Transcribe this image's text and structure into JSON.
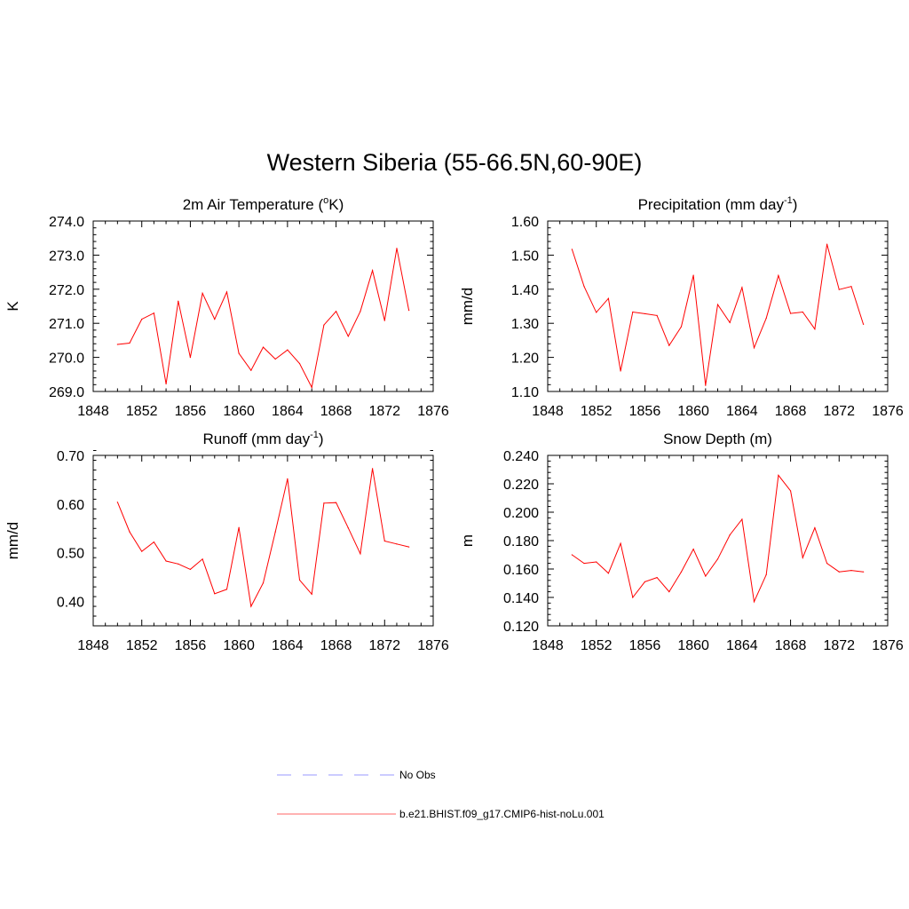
{
  "title": "Western Siberia (55-66.5N,60-90E)",
  "legend": {
    "obs": {
      "label": "No Obs",
      "color": "#9999ff",
      "style": "dashed"
    },
    "model": {
      "label": "b.e21.BHIST.f09_g17.CMIP6-hist-noLu.001",
      "color": "#ff6666",
      "style": "solid"
    }
  },
  "line_color": "#ff0000",
  "chart_data": [
    {
      "type": "line",
      "title_main": "2m Air Temperature (",
      "title_sup": "o",
      "title_tail": "K)",
      "ylabel": "K",
      "xlim": [
        1848,
        1876
      ],
      "ylim": [
        269.0,
        274.0
      ],
      "xticks": [
        1848,
        1852,
        1856,
        1860,
        1864,
        1868,
        1872,
        1876
      ],
      "yticks": [
        269.0,
        270.0,
        271.0,
        272.0,
        273.0,
        274.0
      ],
      "ydecimals": 1,
      "x": [
        1850,
        1851,
        1852,
        1853,
        1854,
        1855,
        1856,
        1857,
        1858,
        1859,
        1860,
        1861,
        1862,
        1863,
        1864,
        1865,
        1866,
        1867,
        1868,
        1869,
        1870,
        1871,
        1872,
        1873,
        1874
      ],
      "y": [
        270.38,
        270.42,
        271.12,
        271.3,
        269.22,
        271.65,
        270.0,
        271.88,
        271.12,
        271.92,
        270.12,
        269.62,
        270.3,
        269.95,
        270.22,
        269.82,
        269.12,
        270.95,
        271.35,
        270.62,
        271.35,
        272.55,
        271.08,
        273.2,
        271.38
      ]
    },
    {
      "type": "line",
      "title_main": "Precipitation (mm day",
      "title_sup": "-1",
      "title_tail": ")",
      "ylabel": "mm/d",
      "xlim": [
        1848,
        1876
      ],
      "ylim": [
        1.1,
        1.6
      ],
      "xticks": [
        1848,
        1852,
        1856,
        1860,
        1864,
        1868,
        1872,
        1876
      ],
      "yticks": [
        1.1,
        1.2,
        1.3,
        1.4,
        1.5,
        1.6
      ],
      "ydecimals": 2,
      "x": [
        1850,
        1851,
        1852,
        1853,
        1854,
        1855,
        1856,
        1857,
        1858,
        1859,
        1860,
        1861,
        1862,
        1863,
        1864,
        1865,
        1866,
        1867,
        1868,
        1869,
        1870,
        1871,
        1872,
        1873,
        1874
      ],
      "y": [
        1.517,
        1.408,
        1.332,
        1.373,
        1.16,
        1.333,
        1.328,
        1.323,
        1.235,
        1.29,
        1.441,
        1.118,
        1.355,
        1.302,
        1.405,
        1.228,
        1.315,
        1.44,
        1.329,
        1.333,
        1.283,
        1.532,
        1.399,
        1.408,
        1.297
      ]
    },
    {
      "type": "line",
      "title_main": "Runoff (mm day",
      "title_sup": "-1",
      "title_tail": ")",
      "ylabel": "mm/d",
      "xlim": [
        1848,
        1876
      ],
      "ylim": [
        0.35,
        0.7
      ],
      "xticks": [
        1848,
        1852,
        1856,
        1860,
        1864,
        1868,
        1872,
        1876
      ],
      "yticks": [
        0.4,
        0.5,
        0.6,
        0.7
      ],
      "ydecimals": 2,
      "x": [
        1850,
        1851,
        1852,
        1853,
        1854,
        1855,
        1856,
        1857,
        1858,
        1859,
        1860,
        1861,
        1862,
        1863,
        1864,
        1865,
        1866,
        1867,
        1868,
        1869,
        1870,
        1871,
        1872,
        1873,
        1874
      ],
      "y": [
        0.604,
        0.543,
        0.503,
        0.522,
        0.483,
        0.477,
        0.466,
        0.487,
        0.416,
        0.425,
        0.552,
        0.39,
        0.438,
        0.543,
        0.652,
        0.444,
        0.415,
        0.602,
        0.603,
        0.551,
        0.498,
        0.673,
        0.524,
        0.518,
        0.512
      ]
    },
    {
      "type": "line",
      "title_main": "Snow Depth (m)",
      "title_sup": "",
      "title_tail": "",
      "ylabel": "m",
      "xlim": [
        1848,
        1876
      ],
      "ylim": [
        0.12,
        0.24
      ],
      "xticks": [
        1848,
        1852,
        1856,
        1860,
        1864,
        1868,
        1872,
        1876
      ],
      "yticks": [
        0.12,
        0.14,
        0.16,
        0.18,
        0.2,
        0.22,
        0.24
      ],
      "ydecimals": 3,
      "x": [
        1850,
        1851,
        1852,
        1853,
        1854,
        1855,
        1856,
        1857,
        1858,
        1859,
        1860,
        1861,
        1862,
        1863,
        1864,
        1865,
        1866,
        1867,
        1868,
        1869,
        1870,
        1871,
        1872,
        1873,
        1874
      ],
      "y": [
        0.17,
        0.164,
        0.165,
        0.157,
        0.178,
        0.14,
        0.151,
        0.154,
        0.144,
        0.158,
        0.174,
        0.155,
        0.167,
        0.184,
        0.195,
        0.137,
        0.156,
        0.226,
        0.215,
        0.168,
        0.189,
        0.164,
        0.158,
        0.159,
        0.158
      ]
    }
  ]
}
